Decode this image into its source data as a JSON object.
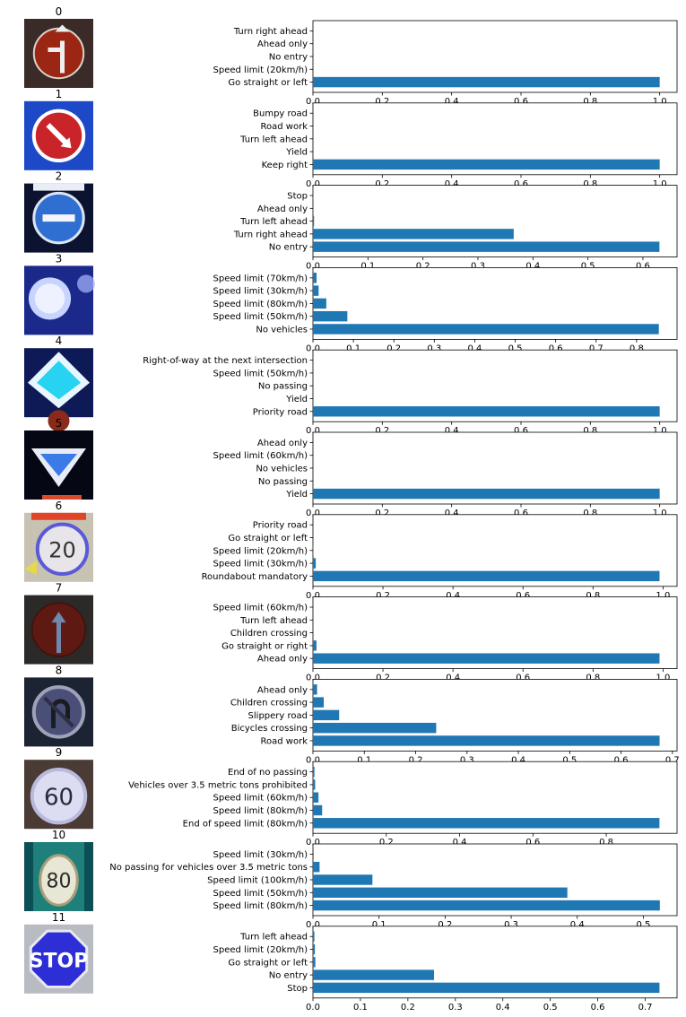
{
  "style": {
    "bar_color": "#1f77b4",
    "axis_color": "#000000",
    "background": "#ffffff"
  },
  "chart_data": [
    {
      "type": "bar",
      "orientation": "horizontal",
      "title": "0",
      "image_icon": "sign-straight-or-left-icon",
      "categories": [
        "Go straight or left",
        "Speed limit (20km/h)",
        "No entry",
        "Ahead only",
        "Turn right ahead"
      ],
      "values": [
        1.0,
        0.0,
        0.0,
        0.0,
        0.0
      ],
      "xlim": [
        0,
        1.05
      ],
      "xticks": [
        0.0,
        0.2,
        0.4,
        0.6,
        0.8,
        1.0
      ],
      "xtick_labels": [
        "0.0",
        "0.2",
        "0.4",
        "0.6",
        "0.8",
        "1.0"
      ],
      "grid": false
    },
    {
      "type": "bar",
      "orientation": "horizontal",
      "title": "1",
      "image_icon": "sign-keep-right-icon",
      "categories": [
        "Keep right",
        "Yield",
        "Turn left ahead",
        "Road work",
        "Bumpy road"
      ],
      "values": [
        1.0,
        0.0,
        0.0,
        0.0,
        0.0
      ],
      "xlim": [
        0,
        1.05
      ],
      "xticks": [
        0.0,
        0.2,
        0.4,
        0.6,
        0.8,
        1.0
      ],
      "xtick_labels": [
        "0.0",
        "0.2",
        "0.4",
        "0.6",
        "0.8",
        "1.0"
      ],
      "grid": false
    },
    {
      "type": "bar",
      "orientation": "horizontal",
      "title": "2",
      "image_icon": "sign-no-entry-icon",
      "categories": [
        "No entry",
        "Turn right ahead",
        "Turn left ahead",
        "Ahead only",
        "Stop"
      ],
      "values": [
        0.63,
        0.365,
        0.002,
        0.001,
        0.001
      ],
      "xlim": [
        0,
        0.662
      ],
      "xticks": [
        0.0,
        0.1,
        0.2,
        0.3,
        0.4,
        0.5,
        0.6
      ],
      "xtick_labels": [
        "0.0",
        "0.1",
        "0.2",
        "0.3",
        "0.4",
        "0.5",
        "0.6"
      ],
      "grid": false
    },
    {
      "type": "bar",
      "orientation": "horizontal",
      "title": "3",
      "image_icon": "sign-no-vehicles-icon",
      "categories": [
        "No vehicles",
        "Speed limit (50km/h)",
        "Speed limit (80km/h)",
        "Speed limit (30km/h)",
        "Speed limit (70km/h)"
      ],
      "values": [
        0.855,
        0.085,
        0.033,
        0.014,
        0.009
      ],
      "xlim": [
        0,
        0.9
      ],
      "xticks": [
        0.0,
        0.1,
        0.2,
        0.3,
        0.4,
        0.5,
        0.6,
        0.7,
        0.8
      ],
      "xtick_labels": [
        "0.0",
        "0.1",
        "0.2",
        "0.3",
        "0.4",
        "0.5",
        "0.6",
        "0.7",
        "0.8"
      ],
      "grid": false
    },
    {
      "type": "bar",
      "orientation": "horizontal",
      "title": "4",
      "image_icon": "sign-priority-road-icon",
      "categories": [
        "Priority road",
        "Yield",
        "No passing",
        "Speed limit (50km/h)",
        "Right-of-way at the next intersection"
      ],
      "values": [
        1.0,
        0.0,
        0.0,
        0.0,
        0.0
      ],
      "xlim": [
        0,
        1.05
      ],
      "xticks": [
        0.0,
        0.2,
        0.4,
        0.6,
        0.8,
        1.0
      ],
      "xtick_labels": [
        "0.0",
        "0.2",
        "0.4",
        "0.6",
        "0.8",
        "1.0"
      ],
      "grid": false
    },
    {
      "type": "bar",
      "orientation": "horizontal",
      "title": "5",
      "image_icon": "sign-yield-icon",
      "categories": [
        "Yield",
        "No passing",
        "No vehicles",
        "Speed limit (60km/h)",
        "Ahead only"
      ],
      "values": [
        1.0,
        0.0,
        0.0,
        0.0,
        0.0
      ],
      "xlim": [
        0,
        1.05
      ],
      "xticks": [
        0.0,
        0.2,
        0.4,
        0.6,
        0.8,
        1.0
      ],
      "xtick_labels": [
        "0.0",
        "0.2",
        "0.4",
        "0.6",
        "0.8",
        "1.0"
      ],
      "grid": false
    },
    {
      "type": "bar",
      "orientation": "horizontal",
      "title": "6",
      "image_icon": "sign-speed-20-icon",
      "categories": [
        "Roundabout mandatory",
        "Speed limit (30km/h)",
        "Speed limit (20km/h)",
        "Go straight or left",
        "Priority road"
      ],
      "values": [
        0.99,
        0.008,
        0.001,
        0.0,
        0.0
      ],
      "xlim": [
        0,
        1.04
      ],
      "xticks": [
        0.0,
        0.2,
        0.4,
        0.6,
        0.8,
        1.0
      ],
      "xtick_labels": [
        "0.0",
        "0.2",
        "0.4",
        "0.6",
        "0.8",
        "1.0"
      ],
      "grid": false
    },
    {
      "type": "bar",
      "orientation": "horizontal",
      "title": "7",
      "image_icon": "sign-ahead-only-icon",
      "categories": [
        "Ahead only",
        "Go straight or right",
        "Children crossing",
        "Turn left ahead",
        "Speed limit (60km/h)"
      ],
      "values": [
        0.99,
        0.01,
        0.0,
        0.0,
        0.0
      ],
      "xlim": [
        0,
        1.04
      ],
      "xticks": [
        0.0,
        0.2,
        0.4,
        0.6,
        0.8,
        1.0
      ],
      "xtick_labels": [
        "0.0",
        "0.2",
        "0.4",
        "0.6",
        "0.8",
        "1.0"
      ],
      "grid": false
    },
    {
      "type": "bar",
      "orientation": "horizontal",
      "title": "8",
      "image_icon": "sign-no-u-turn-icon",
      "categories": [
        "Road work",
        "Bicycles crossing",
        "Slippery road",
        "Children crossing",
        "Ahead only"
      ],
      "values": [
        0.675,
        0.24,
        0.051,
        0.021,
        0.008
      ],
      "xlim": [
        0,
        0.709
      ],
      "xticks": [
        0.0,
        0.1,
        0.2,
        0.3,
        0.4,
        0.5,
        0.6,
        0.7
      ],
      "xtick_labels": [
        "0.0",
        "0.1",
        "0.2",
        "0.3",
        "0.4",
        "0.5",
        "0.6",
        "0.7"
      ],
      "grid": false
    },
    {
      "type": "bar",
      "orientation": "horizontal",
      "title": "9",
      "image_icon": "sign-speed-60-icon",
      "categories": [
        "End of speed limit (80km/h)",
        "Speed limit (80km/h)",
        "Speed limit (60km/h)",
        "Vehicles over 3.5 metric tons prohibited",
        "End of no passing"
      ],
      "values": [
        0.945,
        0.025,
        0.015,
        0.006,
        0.004
      ],
      "xlim": [
        0,
        0.993
      ],
      "xticks": [
        0.0,
        0.2,
        0.4,
        0.6,
        0.8
      ],
      "xtick_labels": [
        "0.0",
        "0.2",
        "0.4",
        "0.6",
        "0.8"
      ],
      "grid": false
    },
    {
      "type": "bar",
      "orientation": "horizontal",
      "title": "10",
      "image_icon": "sign-speed-80-icon",
      "categories": [
        "Speed limit (80km/h)",
        "Speed limit (50km/h)",
        "Speed limit (100km/h)",
        "No passing for vehicles over 3.5 metric tons",
        "Speed limit (30km/h)"
      ],
      "values": [
        0.525,
        0.385,
        0.09,
        0.01,
        0.001
      ],
      "xlim": [
        0,
        0.551
      ],
      "xticks": [
        0.0,
        0.1,
        0.2,
        0.3,
        0.4,
        0.5
      ],
      "xtick_labels": [
        "0.0",
        "0.1",
        "0.2",
        "0.3",
        "0.4",
        "0.5"
      ],
      "grid": false
    },
    {
      "type": "bar",
      "orientation": "horizontal",
      "title": "11",
      "image_icon": "sign-stop-icon",
      "categories": [
        "Stop",
        "No entry",
        "Go straight or left",
        "Speed limit (20km/h)",
        "Turn left ahead"
      ],
      "values": [
        0.73,
        0.255,
        0.005,
        0.004,
        0.003
      ],
      "xlim": [
        0,
        0.767
      ],
      "xticks": [
        0.0,
        0.1,
        0.2,
        0.3,
        0.4,
        0.5,
        0.6,
        0.7
      ],
      "xtick_labels": [
        "0.0",
        "0.1",
        "0.2",
        "0.3",
        "0.4",
        "0.5",
        "0.6",
        "0.7"
      ],
      "grid": false
    }
  ]
}
